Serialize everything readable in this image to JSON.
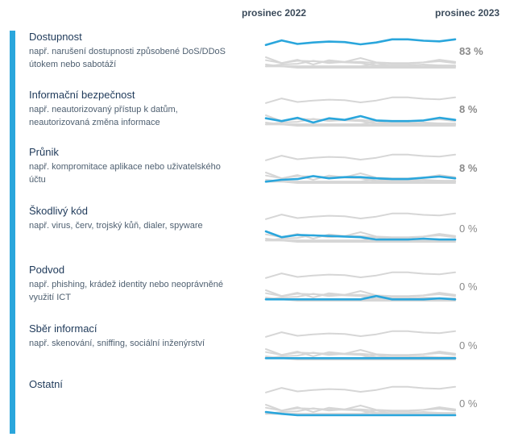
{
  "header": {
    "left": "prosinec 2022",
    "right": "prosinec 2023"
  },
  "colors": {
    "accent": "#2aa6dc",
    "grey": "#d6d6d6",
    "highlight": "#2aa6dc"
  },
  "chart_data": {
    "type": "line",
    "periods_count": 13,
    "categories": [
      {
        "title": "Dostupnost",
        "desc": "např. narušení dostupnosti způsobené DoS/DDoS útokem nebo sabotáží",
        "pct_label": "83 %",
        "values": [
          65,
          90,
          70,
          78,
          83,
          80,
          68,
          78,
          96,
          96,
          88,
          84,
          96
        ]
      },
      {
        "title": "Informační bezpečnost",
        "desc": "např. neautorizovaný přístup k datům, neautorizovaná změna informace",
        "pct_label": "8 %",
        "values": [
          11,
          6,
          12,
          4,
          11,
          8,
          16,
          7,
          6,
          6,
          7,
          12,
          8
        ]
      },
      {
        "title": "Průnik",
        "desc": "např. kompromitace aplikace nebo uživatelského účtu",
        "pct_label": "8 %",
        "values": [
          2,
          4,
          5,
          10,
          6,
          8,
          8,
          6,
          5,
          5,
          7,
          9,
          6
        ]
      },
      {
        "title": "Škodlivý kód",
        "desc": "např. virus, červ, trojský kůň, dialer, spyware",
        "pct_label": "0 %",
        "values": [
          18,
          6,
          10,
          9,
          8,
          7,
          6,
          3,
          3,
          3,
          4,
          3,
          3
        ]
      },
      {
        "title": "Podvod",
        "desc": "např. phishing, krádež identity nebo neoprávněné využití ICT",
        "pct_label": "0 %",
        "values": [
          2,
          2,
          2,
          2,
          2,
          2,
          2,
          6,
          2,
          2,
          2,
          3,
          2
        ]
      },
      {
        "title": "Sběr informací",
        "desc": "např. skenování, sniffing, sociální inženýrství",
        "pct_label": "0 %",
        "values": [
          2,
          2,
          2,
          2,
          2,
          2,
          2,
          2,
          2,
          2,
          2,
          2,
          2
        ]
      },
      {
        "title": "Ostatní",
        "desc": "",
        "pct_label": "0 %",
        "values": [
          4,
          2,
          1,
          1,
          1,
          1,
          1,
          1,
          1,
          1,
          1,
          1,
          1
        ]
      }
    ]
  }
}
